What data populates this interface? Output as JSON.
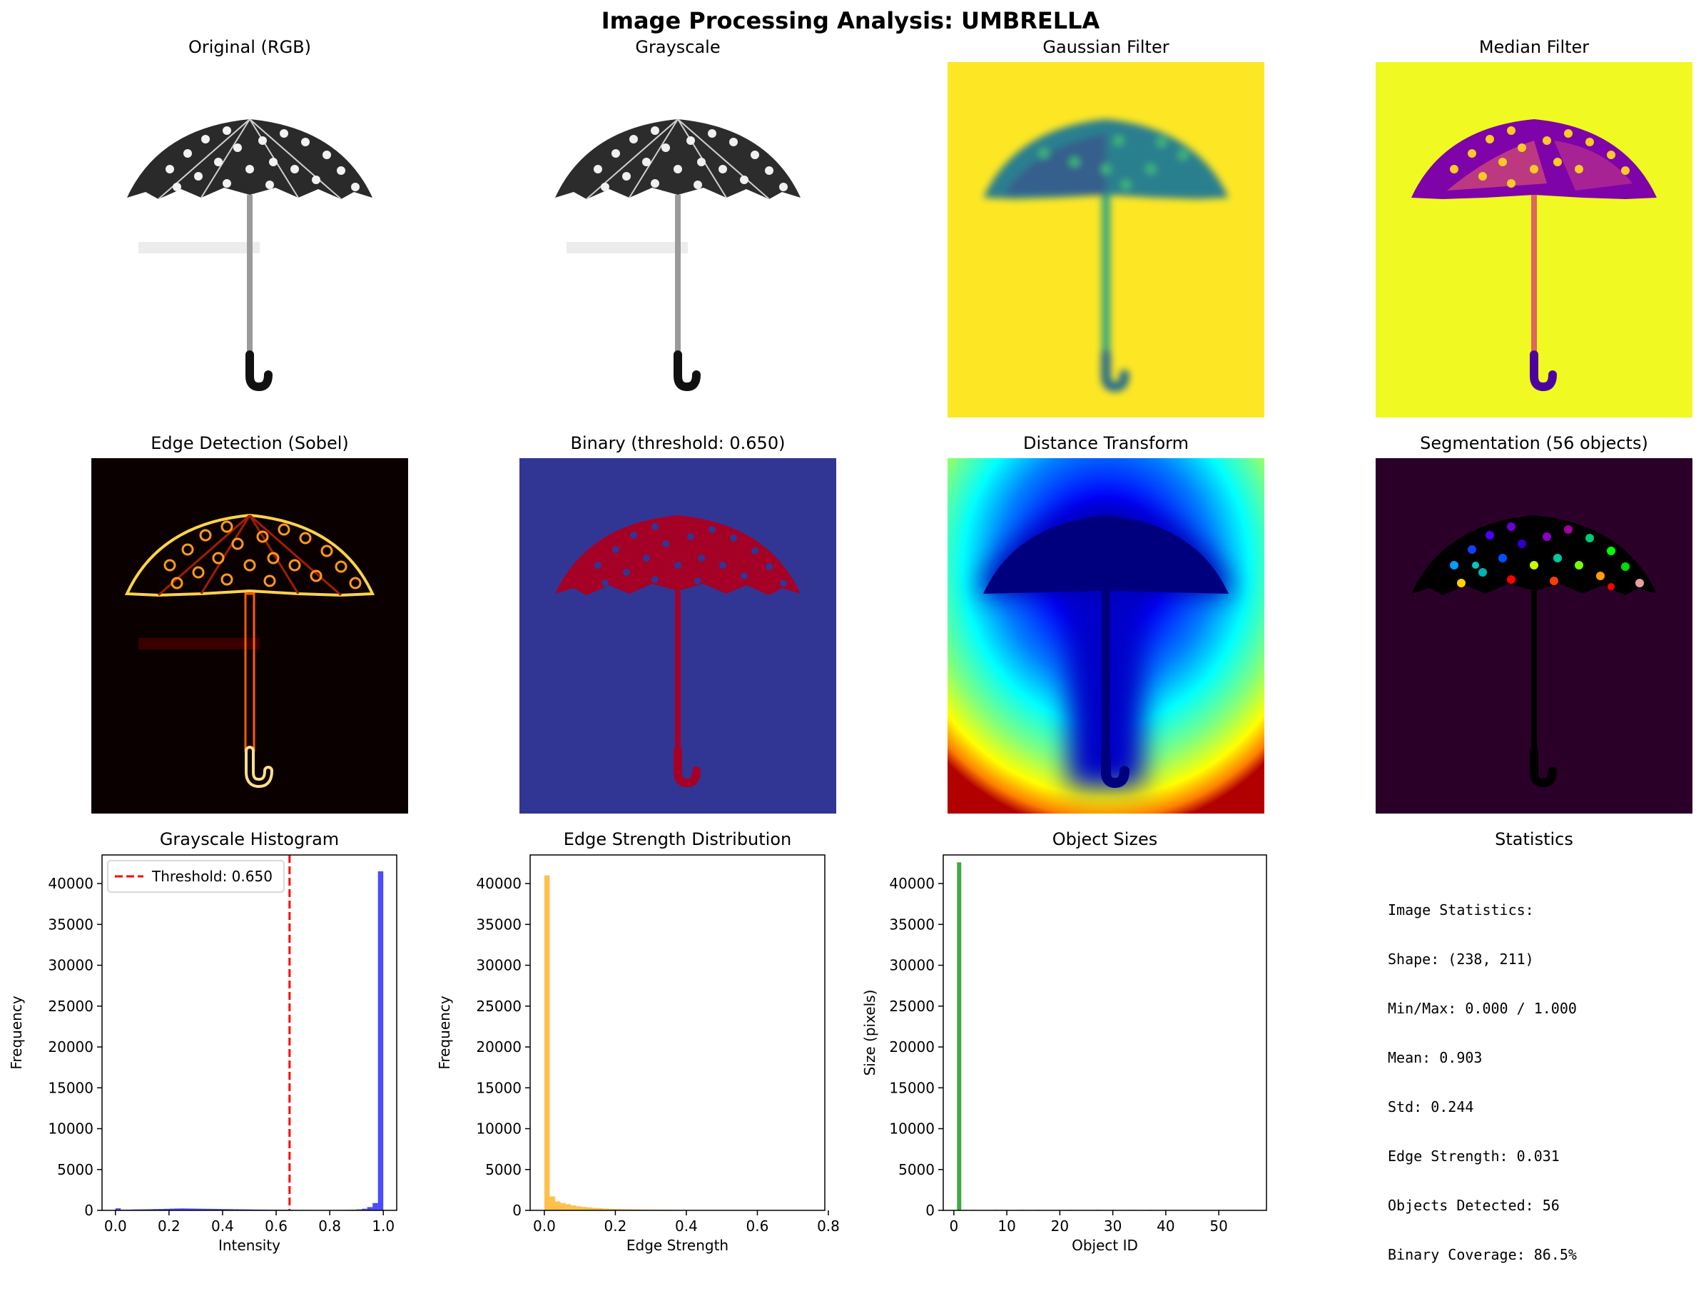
{
  "figure": {
    "title": "Image Processing Analysis: UMBRELLA"
  },
  "panels": {
    "original": {
      "title": "Original (RGB)"
    },
    "grayscale": {
      "title": "Grayscale"
    },
    "gaussian": {
      "title": "Gaussian Filter"
    },
    "median": {
      "title": "Median Filter"
    },
    "edges": {
      "title": "Edge Detection (Sobel)"
    },
    "binary": {
      "title": "Binary (threshold: 0.650)"
    },
    "distance": {
      "title": "Distance Transform"
    },
    "segmentation": {
      "title": "Segmentation (56 objects)"
    },
    "statistics": {
      "title": "Statistics",
      "lines": [
        "Image Statistics:",
        "Shape: (238, 211)",
        "Min/Max: 0.000 / 1.000",
        "Mean: 0.903",
        "Std: 0.244",
        "Edge Strength: 0.031",
        "Objects Detected: 56",
        "Binary Coverage: 86.5%"
      ]
    }
  },
  "colors": {
    "hist_gray": "#0000ff",
    "hist_edge": "#ffa500",
    "obj_bars": "#2ca02c",
    "threshold_line": "#ff0000"
  },
  "chart_data": [
    {
      "id": "gray_hist",
      "type": "bar",
      "title": "Grayscale Histogram",
      "xlabel": "Intensity",
      "ylabel": "Frequency",
      "xlim": [
        -0.05,
        1.05
      ],
      "ylim": [
        0,
        43500
      ],
      "xticks": [
        0.0,
        0.2,
        0.4,
        0.6,
        0.8,
        1.0
      ],
      "xtick_labels": [
        "0.0",
        "0.2",
        "0.4",
        "0.6",
        "0.8",
        "1.0"
      ],
      "yticks": [
        0,
        5000,
        10000,
        15000,
        20000,
        25000,
        30000,
        35000,
        40000
      ],
      "bin_width": 0.02,
      "bins_x": [
        0.0,
        0.02,
        0.04,
        0.06,
        0.08,
        0.1,
        0.12,
        0.14,
        0.16,
        0.18,
        0.2,
        0.22,
        0.24,
        0.26,
        0.28,
        0.3,
        0.32,
        0.34,
        0.36,
        0.38,
        0.4,
        0.42,
        0.44,
        0.46,
        0.48,
        0.5,
        0.52,
        0.54,
        0.56,
        0.58,
        0.6,
        0.62,
        0.64,
        0.66,
        0.68,
        0.7,
        0.72,
        0.74,
        0.76,
        0.78,
        0.8,
        0.82,
        0.84,
        0.86,
        0.88,
        0.9,
        0.92,
        0.94,
        0.96,
        0.98
      ],
      "values": [
        250,
        80,
        90,
        110,
        120,
        130,
        140,
        160,
        170,
        190,
        210,
        230,
        240,
        230,
        220,
        210,
        200,
        190,
        180,
        170,
        160,
        150,
        140,
        130,
        120,
        110,
        100,
        95,
        90,
        85,
        80,
        75,
        70,
        60,
        55,
        50,
        45,
        40,
        40,
        40,
        40,
        45,
        50,
        60,
        80,
        120,
        200,
        400,
        900,
        41500
      ],
      "threshold": 0.65,
      "legend": "Threshold: 0.650",
      "legend_position": "upper left"
    },
    {
      "id": "edge_hist",
      "type": "bar",
      "title": "Edge Strength Distribution",
      "xlabel": "Edge Strength",
      "ylabel": "Frequency",
      "xlim": [
        -0.04,
        0.79
      ],
      "ylim": [
        0,
        43500
      ],
      "xticks": [
        0.0,
        0.2,
        0.4,
        0.6,
        0.8
      ],
      "xtick_labels": [
        "0.0",
        "0.2",
        "0.4",
        "0.6",
        "0.8"
      ],
      "yticks": [
        0,
        5000,
        10000,
        15000,
        20000,
        25000,
        30000,
        35000,
        40000
      ],
      "bin_width": 0.0151,
      "bins_x": [
        0.0,
        0.015,
        0.03,
        0.045,
        0.06,
        0.075,
        0.09,
        0.105,
        0.12,
        0.135,
        0.15,
        0.165,
        0.18,
        0.195,
        0.21,
        0.225,
        0.24,
        0.255,
        0.27,
        0.285,
        0.3,
        0.315,
        0.33,
        0.345,
        0.36,
        0.375,
        0.39,
        0.405,
        0.42,
        0.435,
        0.45,
        0.465,
        0.48,
        0.495,
        0.51,
        0.525,
        0.54,
        0.555,
        0.57,
        0.585,
        0.6,
        0.615,
        0.63,
        0.645,
        0.66,
        0.675,
        0.69,
        0.705,
        0.72,
        0.735
      ],
      "values": [
        41000,
        1700,
        1100,
        900,
        750,
        600,
        500,
        420,
        360,
        300,
        260,
        220,
        190,
        170,
        150,
        140,
        130,
        120,
        110,
        100,
        95,
        90,
        80,
        70,
        60,
        50,
        45,
        40,
        35,
        30,
        28,
        26,
        24,
        22,
        20,
        18,
        16,
        14,
        12,
        10,
        9,
        8,
        7,
        6,
        5,
        4,
        3,
        3,
        2,
        2
      ]
    },
    {
      "id": "object_sizes",
      "type": "bar",
      "title": "Object Sizes",
      "xlabel": "Object ID",
      "ylabel": "Size (pixels)",
      "xlim": [
        -2,
        59
      ],
      "ylim": [
        0,
        43500
      ],
      "xticks": [
        0,
        10,
        20,
        30,
        40,
        50
      ],
      "xtick_labels": [
        "0",
        "10",
        "20",
        "30",
        "40",
        "50"
      ],
      "yticks": [
        0,
        5000,
        10000,
        15000,
        20000,
        25000,
        30000,
        35000,
        40000
      ],
      "bar_width": 0.8,
      "x": [
        1,
        2,
        3,
        4,
        5,
        6,
        7,
        8,
        9,
        10,
        11,
        12,
        13,
        14,
        15,
        16,
        17,
        18,
        19,
        20,
        21,
        22,
        23,
        24,
        25,
        26,
        27,
        28,
        29,
        30,
        31,
        32,
        33,
        34,
        35,
        36,
        37,
        38,
        39,
        40,
        41,
        42,
        43,
        44,
        45,
        46,
        47,
        48,
        49,
        50,
        51,
        52,
        53,
        54,
        55,
        56
      ],
      "values": [
        42600,
        60,
        40,
        55,
        45,
        50,
        35,
        60,
        48,
        52,
        40,
        38,
        55,
        47,
        42,
        60,
        36,
        44,
        50,
        41,
        39,
        57,
        46,
        43,
        49,
        37,
        58,
        45,
        40,
        53,
        42,
        48,
        36,
        51,
        44,
        39,
        56,
        47,
        41,
        50,
        38,
        54,
        43,
        46,
        40,
        52,
        37,
        49,
        45,
        42,
        55,
        39,
        48,
        44,
        41,
        50
      ]
    }
  ]
}
